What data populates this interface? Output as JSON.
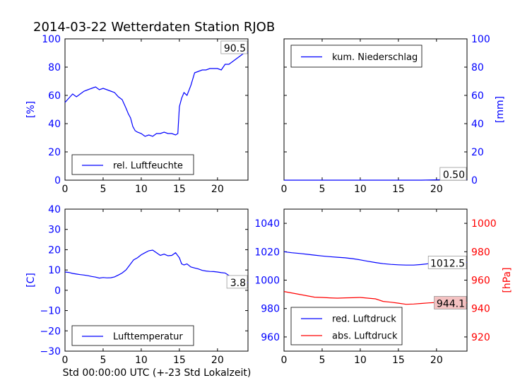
{
  "figure": {
    "title": "2014-03-22 Wetterdaten Station RJOB",
    "xlabel": "Std 00:00:00 UTC (+-23 Std Lokalzeit)",
    "colors": {
      "blue": "#0000ff",
      "red": "#ff0000",
      "axis": "#000000"
    }
  },
  "chart_data": [
    {
      "type": "line",
      "panel": "top-left",
      "ylabel": "[%]",
      "ylim": [
        0,
        100
      ],
      "yticks": [
        0,
        20,
        40,
        60,
        80,
        100
      ],
      "xlim": [
        0,
        24
      ],
      "xticks": [
        0,
        5,
        10,
        15,
        20
      ],
      "legend": "lower-left",
      "annotation": "90.5",
      "series": [
        {
          "name": "rel. Luftfeuchte",
          "color": "#0000ff",
          "x": [
            0,
            0.5,
            1,
            1.5,
            2,
            2.5,
            3,
            3.5,
            4,
            4.5,
            5,
            5.5,
            6,
            6.5,
            7,
            7.5,
            8,
            8.3,
            8.6,
            8.9,
            9.2,
            9.5,
            10,
            10.5,
            11,
            11.5,
            12,
            12.5,
            13,
            13.5,
            14,
            14.5,
            14.8,
            15,
            15.3,
            15.6,
            16,
            16.5,
            17,
            17.5,
            18,
            18.5,
            19,
            19.5,
            20,
            20.5,
            21,
            21.5,
            22,
            22.5,
            23,
            23.5,
            24
          ],
          "y": [
            55,
            58,
            61,
            59,
            61,
            63,
            64,
            65,
            66,
            64,
            65,
            64,
            63,
            62,
            59,
            57,
            51,
            47,
            44,
            38,
            35,
            34,
            33,
            31,
            32,
            31,
            33,
            33,
            34,
            33,
            33,
            32,
            33,
            52,
            58,
            62,
            60,
            67,
            76,
            77,
            78,
            78,
            79,
            79,
            79,
            78,
            82,
            82,
            84,
            86,
            88,
            90,
            90.5
          ]
        }
      ]
    },
    {
      "type": "line",
      "panel": "top-right",
      "ylabel": "[mm]",
      "ylim": [
        0,
        100
      ],
      "yticks": [
        0,
        20,
        40,
        60,
        80,
        100
      ],
      "xlim": [
        0,
        24
      ],
      "xticks": [
        0,
        5,
        10,
        15,
        20
      ],
      "legend": "upper-left",
      "annotation": "0.50",
      "series": [
        {
          "name": "kum. Niederschlag",
          "color": "#0000ff",
          "x": [
            0,
            6,
            12,
            18,
            21,
            24
          ],
          "y": [
            0,
            0,
            0,
            0,
            0.3,
            0.5
          ]
        }
      ]
    },
    {
      "type": "line",
      "panel": "bottom-left",
      "ylabel": "[C]",
      "ylim": [
        -30,
        40
      ],
      "yticks": [
        -30,
        -20,
        -10,
        0,
        10,
        20,
        30,
        40
      ],
      "ytick_labels": [
        "−30",
        "−20",
        "−10",
        "0",
        "10",
        "20",
        "30",
        "40"
      ],
      "xlim": [
        0,
        24
      ],
      "xticks": [
        0,
        5,
        10,
        15,
        20
      ],
      "legend": "lower-left",
      "annotation": "3.8",
      "series": [
        {
          "name": "Lufttemperatur",
          "color": "#0000ff",
          "x": [
            0,
            0.5,
            1,
            1.5,
            2,
            2.5,
            3,
            3.5,
            4,
            4.5,
            5,
            5.5,
            6,
            6.5,
            7,
            7.5,
            8,
            8.5,
            9,
            9.5,
            10,
            10.5,
            11,
            11.5,
            12,
            12.5,
            13,
            13.5,
            14,
            14.5,
            15,
            15.3,
            15.6,
            16,
            16.5,
            17,
            17.5,
            18,
            18.5,
            19,
            19.5,
            20,
            20.5,
            21,
            21.5,
            22,
            22.5,
            23,
            23.5,
            24
          ],
          "y": [
            9,
            8.8,
            8.3,
            8,
            7.7,
            7.5,
            7.2,
            6.8,
            6.5,
            6,
            6.3,
            6.1,
            6.2,
            6.6,
            7.5,
            8.5,
            10,
            12.5,
            15,
            16,
            17.5,
            18.5,
            19.5,
            19.8,
            18.5,
            17.2,
            17.8,
            17,
            17.2,
            18.5,
            16,
            13,
            12.5,
            13,
            11.5,
            11,
            10.5,
            9.8,
            9.5,
            9.3,
            9.2,
            9,
            8.7,
            8.5,
            7.3,
            6.5,
            5.5,
            4.8,
            4.2,
            3.8
          ]
        }
      ]
    },
    {
      "type": "line",
      "panel": "bottom-right",
      "ylabel": "[hPa]",
      "ylim": [
        950,
        1050
      ],
      "yticks": [
        960,
        980,
        1000,
        1020,
        1040
      ],
      "y2lim": [
        910,
        1010
      ],
      "y2ticks": [
        920,
        940,
        960,
        980,
        1000
      ],
      "xlim": [
        0,
        24
      ],
      "xticks": [
        0,
        5,
        10,
        15,
        20
      ],
      "legend": "lower-left",
      "annotations": [
        "1012.5",
        "944.1"
      ],
      "series": [
        {
          "name": "red. Luftdruck",
          "color": "#0000ff",
          "axis": "left",
          "x": [
            0,
            1,
            2,
            3,
            4,
            5,
            6,
            7,
            8,
            9,
            10,
            11,
            12,
            13,
            14,
            15,
            16,
            17,
            18,
            19,
            20,
            21,
            22,
            23,
            24
          ],
          "y": [
            1020,
            1019.3,
            1018.8,
            1018.2,
            1017.6,
            1017,
            1016.5,
            1016.1,
            1015.7,
            1015.1,
            1014.3,
            1013.3,
            1012.4,
            1011.6,
            1011.1,
            1010.8,
            1010.6,
            1010.6,
            1011,
            1011.6,
            1012,
            1012.2,
            1012.3,
            1012.4,
            1012.5
          ]
        },
        {
          "name": "abs. Luftdruck",
          "color": "#ff0000",
          "axis": "right",
          "x": [
            0,
            1,
            2,
            3,
            4,
            5,
            6,
            7,
            8,
            9,
            10,
            11,
            12,
            13,
            14,
            15,
            16,
            17,
            18,
            19,
            20,
            21,
            22,
            23,
            24
          ],
          "y": [
            952,
            951,
            950,
            949,
            948,
            947.8,
            947.5,
            947.3,
            947.5,
            947.6,
            947.8,
            947.3,
            946.8,
            945,
            944.5,
            943.8,
            943,
            943.2,
            943.6,
            944,
            944.3,
            944.3,
            944.2,
            944.1,
            944.1
          ]
        }
      ]
    }
  ]
}
